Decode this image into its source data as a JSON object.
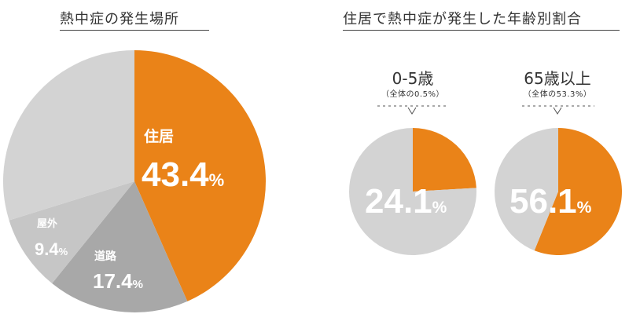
{
  "titles": {
    "left": "熱中症の発生場所",
    "right": "住居で熱中症が発生した年齢別割合"
  },
  "subcharts": [
    {
      "heading": "0-5歳",
      "note": "（全体の0.5%）"
    },
    {
      "heading": "65歳以上",
      "note": "（全体の53.3%）"
    }
  ],
  "colors": {
    "orange": "#ea8318",
    "light_gray": "#d3d3d3",
    "mid_gray": "#a8a8a8",
    "gray2": "#c6c6c6"
  },
  "chart_data": [
    {
      "type": "pie",
      "title": "熱中症の発生場所",
      "slices": [
        {
          "label": "住居",
          "value": 43.4,
          "value_text": "43.4",
          "color": "#ea8318"
        },
        {
          "label": "道路",
          "value": 17.4,
          "value_text": "17.4",
          "color": "#a8a8a8"
        },
        {
          "label": "屋外",
          "value": 9.4,
          "value_text": "9.4",
          "color": "#c6c6c6"
        },
        {
          "label": "",
          "value": 29.8,
          "value_text": "",
          "color": "#d3d3d3"
        }
      ]
    },
    {
      "type": "pie",
      "title": "0-5歳",
      "slices": [
        {
          "label": "",
          "value": 24.1,
          "value_text": "24.1",
          "color": "#ea8318"
        },
        {
          "label": "",
          "value": 75.9,
          "value_text": "",
          "color": "#d3d3d3"
        }
      ]
    },
    {
      "type": "pie",
      "title": "65歳以上",
      "slices": [
        {
          "label": "",
          "value": 56.1,
          "value_text": "56.1",
          "color": "#ea8318"
        },
        {
          "label": "",
          "value": 43.9,
          "value_text": "",
          "color": "#d3d3d3"
        }
      ]
    }
  ],
  "percent_sign": "%"
}
